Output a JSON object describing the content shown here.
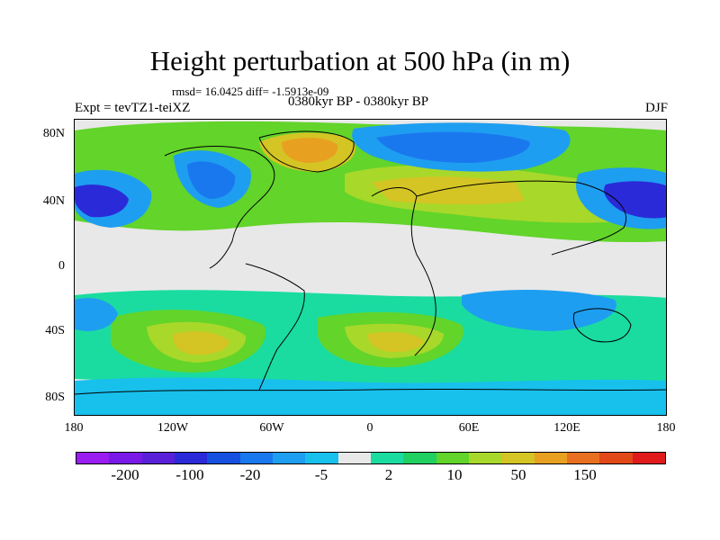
{
  "title": "Height perturbation at 500 hPa (in m)",
  "stats": "rmsd= 16.0425 diff= -1.5913e-09",
  "experiment": "Expt = tevTZ1-teiXZ",
  "period": "0380kyr BP - 0380kyr BP",
  "season": "DJF",
  "lat_labels": [
    "80N",
    "40N",
    "0",
    "40S",
    "80S"
  ],
  "lon_labels": [
    "180",
    "120W",
    "60W",
    "0",
    "60E",
    "120E",
    "180"
  ],
  "colorbar": {
    "colors": [
      "#9a1cf0",
      "#7a18e8",
      "#5a1fd8",
      "#2a2ad8",
      "#1550e0",
      "#1a78ee",
      "#1e9ef0",
      "#18c0ec",
      "#e8e8e8",
      "#1adca0",
      "#20d060",
      "#62d42a",
      "#a8d82a",
      "#d4c424",
      "#e8a020",
      "#e87020",
      "#e24818",
      "#e01a1a"
    ],
    "labels": [
      "-200",
      "-100",
      "-20",
      "-5",
      "2",
      "10",
      "50",
      "150"
    ]
  },
  "map_colors": {
    "neutral": "#e8e8e8",
    "low1": "#18c0ec",
    "low2": "#1e9ef0",
    "low3": "#1a78ee",
    "low4": "#2a2ad8",
    "high1": "#1adca0",
    "high2": "#62d42a",
    "high3": "#a8d82a",
    "high4": "#d4c424",
    "high5": "#e8a020"
  }
}
